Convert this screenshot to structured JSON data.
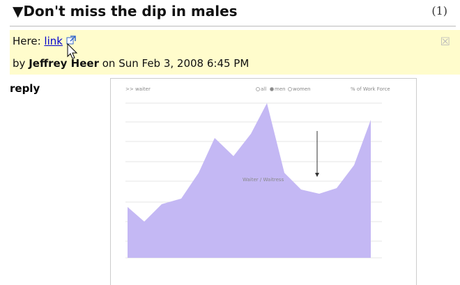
{
  "post": {
    "arrow": "▼",
    "title": "Don't miss the dip in males",
    "count": "(1)"
  },
  "comment": {
    "prefix": "Here:",
    "link": "link",
    "by": "by",
    "author": "Jeffrey Heer",
    "date": "on Sun Feb 3, 2008 6:45 PM"
  },
  "reply": "reply",
  "embedded_chart": {
    "breadcrumb": ">> waiter",
    "options": [
      "all",
      "men",
      "women"
    ],
    "measure": "% of Work Force",
    "label": "Waiter / Waitress"
  }
}
